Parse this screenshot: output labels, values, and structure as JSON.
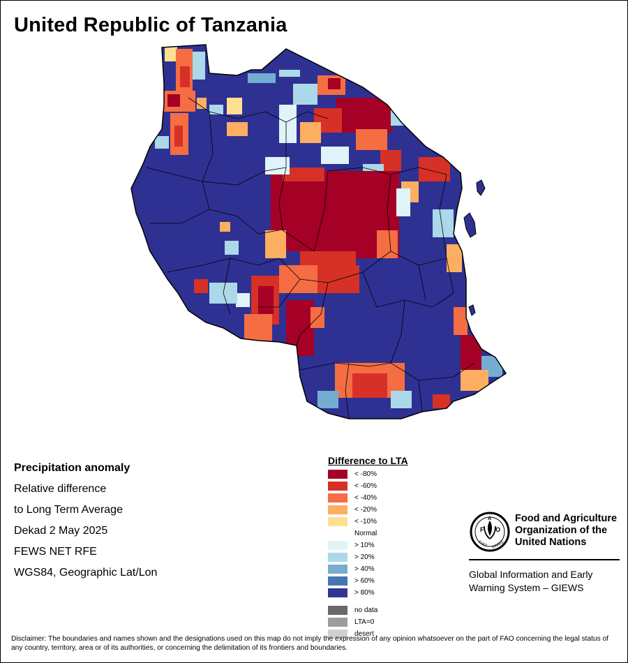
{
  "title": "United Republic of Tanzania",
  "info": {
    "heading": "Precipitation anomaly",
    "lines": [
      "Relative difference",
      "to Long Term Average",
      "Dekad 2 May 2025",
      "FEWS NET RFE",
      "WGS84, Geographic Lat/Lon"
    ]
  },
  "legend": {
    "title": "Difference to LTA",
    "classes": [
      {
        "label": "< -80%",
        "color": "#a50026"
      },
      {
        "label": "< -60%",
        "color": "#d73027"
      },
      {
        "label": "< -40%",
        "color": "#f46d43"
      },
      {
        "label": "< -20%",
        "color": "#fdae61"
      },
      {
        "label": "< -10%",
        "color": "#fee090"
      },
      {
        "label": "Normal",
        "color": "#ffffff"
      },
      {
        "label": "> 10%",
        "color": "#e0f3f8"
      },
      {
        "label": "> 20%",
        "color": "#abd9e9"
      },
      {
        "label": "> 40%",
        "color": "#74add1"
      },
      {
        "label": "> 60%",
        "color": "#4575b4"
      },
      {
        "label": "> 80%",
        "color": "#313695"
      }
    ],
    "special": [
      {
        "label": "no data",
        "color": "#686868"
      },
      {
        "label": "LTA=0",
        "color": "#9c9c9c"
      },
      {
        "label": "desert",
        "color": "#d0d0d0"
      }
    ]
  },
  "fao": {
    "name": "Food and Agriculture Organization of the United Nations",
    "program": "Global Information and Early Warning System – GIEWS"
  },
  "disclaimer": "Disclaimer: The boundaries and names shown and the designations used on this map do not imply the expression of any opinion whatsoever on the part of FAO concerning the legal status of any country, territory, area or of its authorities, or concerning the delimitation of its frontiers and boundaries.",
  "map": {
    "base_color": "#2e3192",
    "border_color": "#000000"
  }
}
